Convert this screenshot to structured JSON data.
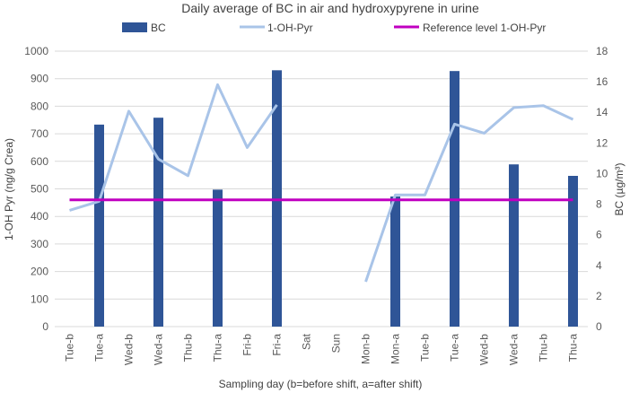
{
  "chart_data": {
    "type": "bar",
    "title": "Daily average of BC in air and hydroxypyrene in urine",
    "xlabel": "Sampling day (b=before shift, a=after shift)",
    "ylabel_left": "1-OH Pyr (ng/g Crea)",
    "ylabel_right": "BC (µg/m³)",
    "ylim_left": [
      0,
      1000
    ],
    "ylim_right": [
      0,
      18
    ],
    "yticks_left": [
      0,
      100,
      200,
      300,
      400,
      500,
      600,
      700,
      800,
      900,
      1000
    ],
    "yticks_right": [
      0,
      2,
      4,
      6,
      8,
      10,
      12,
      14,
      16,
      18
    ],
    "categories": [
      "Tue-b",
      "Tue-a",
      "Wed-b",
      "Wed-a",
      "Thu-b",
      "Thu-a",
      "Fri-b",
      "Fri-a",
      "Sat",
      "Sun",
      "Mon-b",
      "Mon-a",
      "Tue-b",
      "Tue-a",
      "Wed-b",
      "Wed-a",
      "Thu-b",
      "Thu-a"
    ],
    "series": [
      {
        "name": "BC",
        "type": "bar",
        "axis": "right",
        "color": "#2f5597",
        "values": [
          null,
          13.2,
          null,
          13.65,
          null,
          8.95,
          null,
          16.75,
          null,
          null,
          null,
          8.5,
          null,
          16.7,
          null,
          10.6,
          null,
          9.85
        ]
      },
      {
        "name": "1-OH-Pyr",
        "type": "line",
        "axis": "left",
        "color": "#a9c4e8",
        "values": [
          422,
          455,
          782,
          608,
          548,
          878,
          650,
          805,
          null,
          null,
          163,
          478,
          478,
          735,
          702,
          795,
          802,
          752
        ]
      },
      {
        "name": "Reference level 1-OH-Pyr",
        "type": "line",
        "axis": "left",
        "color": "#c000c0",
        "constant": 460
      }
    ],
    "legend": "top"
  }
}
